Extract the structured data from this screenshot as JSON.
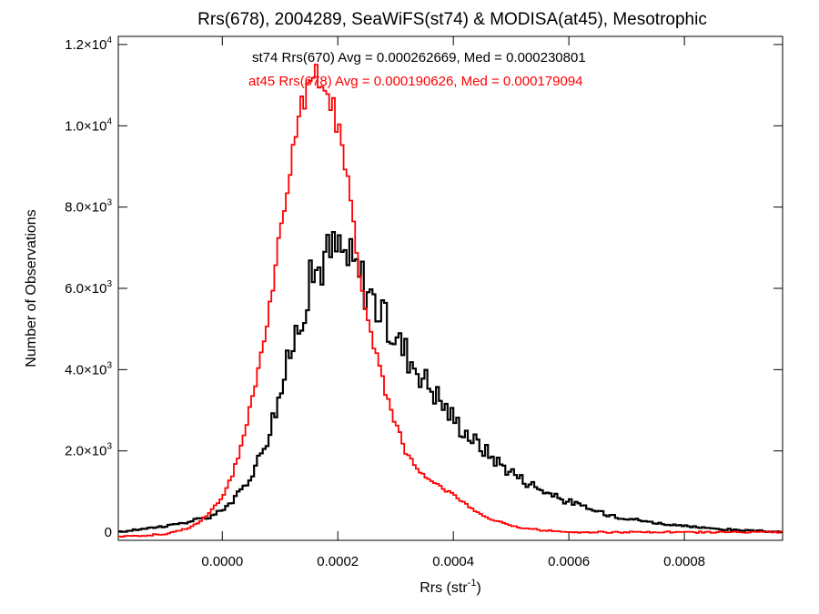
{
  "chart_data": {
    "type": "line",
    "title": "Rrs(678), 2004289, SeaWiFS(st74) & MODISA(at45), Mesotrophic",
    "xlabel": {
      "base": "Rrs (str",
      "sup": "-1",
      "tail": ")"
    },
    "ylabel": "Number of Observations",
    "xlim": [
      -0.00018,
      0.00097
    ],
    "ylim": [
      -200,
      12200
    ],
    "xticks": [
      {
        "value": 0.0,
        "label": "0.0000"
      },
      {
        "value": 0.0002,
        "label": "0.0002"
      },
      {
        "value": 0.0004,
        "label": "0.0004"
      },
      {
        "value": 0.0006,
        "label": "0.0006"
      },
      {
        "value": 0.0008,
        "label": "0.0008"
      }
    ],
    "yticks": [
      {
        "value": 0,
        "mant": "0",
        "exp": ""
      },
      {
        "value": 2000,
        "mant": "2.0×10",
        "exp": "3"
      },
      {
        "value": 4000,
        "mant": "4.0×10",
        "exp": "3"
      },
      {
        "value": 6000,
        "mant": "6.0×10",
        "exp": "3"
      },
      {
        "value": 8000,
        "mant": "8.0×10",
        "exp": "3"
      },
      {
        "value": 10000,
        "mant": "1.0×10",
        "exp": "4"
      },
      {
        "value": 12000,
        "mant": "1.2×10",
        "exp": "4"
      }
    ],
    "grid": false,
    "series": [
      {
        "label": "st74 Rrs(670) Avg = 0.000262669, Med = 0.000230801",
        "color": "#000000",
        "x": [
          -0.00018,
          -0.00014,
          -0.0001,
          -6e-05,
          -2e-05,
          0.0,
          2e-05,
          4e-05,
          6e-05,
          8e-05,
          0.0001,
          0.00012,
          0.00014,
          0.00016,
          0.00018,
          0.0002,
          0.00022,
          0.00024,
          0.00026,
          0.00028,
          0.0003,
          0.00032,
          0.00034,
          0.00036,
          0.00038,
          0.0004,
          0.00042,
          0.00044,
          0.00046,
          0.00048,
          0.0005,
          0.00052,
          0.00054,
          0.00056,
          0.00058,
          0.0006,
          0.00064,
          0.00068,
          0.00072,
          0.00076,
          0.0008,
          0.00084,
          0.00088,
          0.00092,
          0.00097
        ],
        "y": [
          0,
          80,
          150,
          250,
          380,
          550,
          800,
          1150,
          1700,
          2450,
          3400,
          4500,
          5600,
          6400,
          6800,
          7000,
          6700,
          6300,
          5800,
          5200,
          4800,
          4400,
          4000,
          3600,
          3200,
          2800,
          2500,
          2200,
          1950,
          1700,
          1500,
          1300,
          1150,
          1000,
          850,
          750,
          550,
          400,
          300,
          210,
          150,
          100,
          60,
          30,
          10
        ]
      },
      {
        "label": "at45 Rrs(678) Avg = 0.000190626, Med = 0.000179094",
        "color": "#ff0000",
        "x": [
          -0.00018,
          -0.00014,
          -0.0001,
          -6e-05,
          -4e-05,
          -2e-05,
          0.0,
          2e-05,
          4e-05,
          6e-05,
          8e-05,
          0.0001,
          0.00012,
          0.00014,
          0.00016,
          0.00017,
          0.00018,
          0.0002,
          0.00022,
          0.00024,
          0.00026,
          0.00028,
          0.0003,
          0.00032,
          0.00034,
          0.00036,
          0.00038,
          0.0004,
          0.00042,
          0.00044,
          0.00046,
          0.00048,
          0.0005,
          0.00052,
          0.00054,
          0.00056,
          0.00058,
          0.0006,
          0.00064,
          0.00068,
          0.00072,
          0.00076,
          0.0008,
          0.00084,
          0.00088,
          0.00092,
          0.00097
        ],
        "y": [
          -100,
          -80,
          -50,
          100,
          250,
          500,
          850,
          1500,
          2500,
          3800,
          5400,
          7300,
          9300,
          10600,
          11200,
          11300,
          11000,
          10000,
          8400,
          6200,
          4700,
          3600,
          2700,
          1900,
          1500,
          1300,
          1100,
          950,
          700,
          500,
          350,
          250,
          160,
          100,
          70,
          40,
          25,
          10,
          0,
          0,
          0,
          0,
          0,
          0,
          0,
          0,
          0
        ]
      }
    ]
  }
}
